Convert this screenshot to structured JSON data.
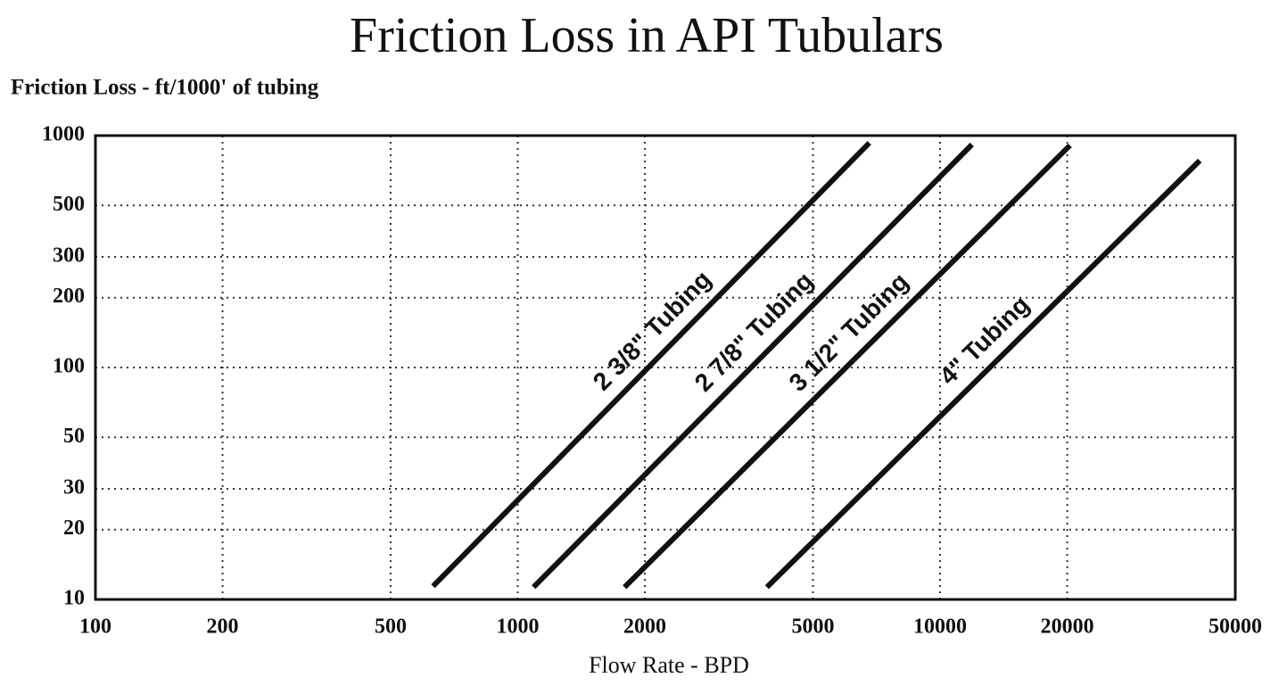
{
  "chart_data": {
    "type": "line",
    "title": "Friction Loss in API Tubulars",
    "ylabel": "Friction Loss - ft/1000' of tubing",
    "xlabel": "Flow Rate - BPD",
    "xlog": true,
    "ylog": true,
    "grid": true,
    "xlim": [
      100,
      50000
    ],
    "ylim": [
      10,
      1000
    ],
    "xticks": [
      100,
      200,
      500,
      1000,
      2000,
      5000,
      10000,
      20000,
      50000
    ],
    "yticks": [
      10,
      20,
      30,
      50,
      100,
      200,
      300,
      500,
      1000
    ],
    "series": [
      {
        "name": "2 3/8\" Tubing",
        "color": "#111111",
        "x": [
          630,
          6800
        ],
        "values": [
          11.4,
          930
        ]
      },
      {
        "name": "2 7/8\" Tubing",
        "color": "#111111",
        "x": [
          1090,
          11900
        ],
        "values": [
          11.3,
          915
        ]
      },
      {
        "name": "3 1/2\" Tubing",
        "color": "#111111",
        "x": [
          1790,
          20300
        ],
        "values": [
          11.3,
          907
        ]
      },
      {
        "name": "4\" Tubing",
        "color": "#111111",
        "x": [
          3890,
          41200
        ],
        "values": [
          11.3,
          780
        ]
      }
    ]
  }
}
